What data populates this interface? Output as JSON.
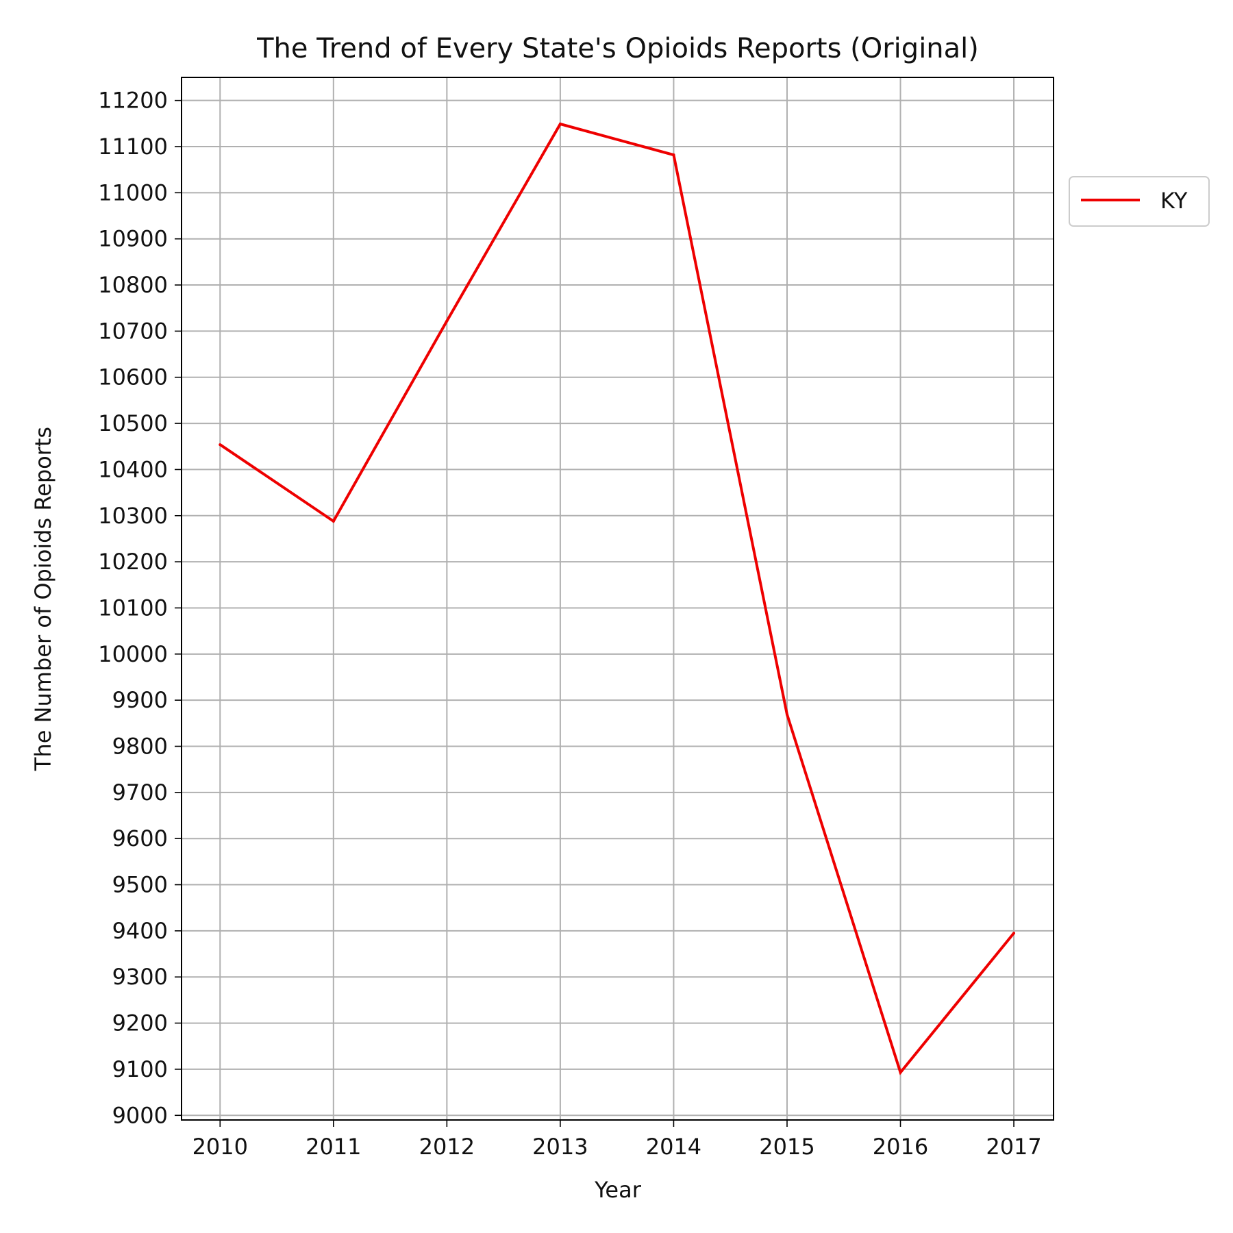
{
  "chart_data": {
    "type": "line",
    "title": "The Trend of Every State's Opioids Reports (Original)",
    "xlabel": "Year",
    "ylabel": "The Number of Opioids Reports",
    "x": [
      2010,
      2011,
      2012,
      2013,
      2014,
      2015,
      2016,
      2017
    ],
    "xlim": [
      2009.66,
      2017.35
    ],
    "ylim": [
      8990,
      11250
    ],
    "yticks": [
      9000,
      9100,
      9200,
      9300,
      9400,
      9500,
      9600,
      9700,
      9800,
      9900,
      10000,
      10100,
      10200,
      10300,
      10400,
      10500,
      10600,
      10700,
      10800,
      10900,
      11000,
      11100,
      11200
    ],
    "grid": true,
    "legend_position": "outside-right-top",
    "series": [
      {
        "name": "KY",
        "color": "#ee0000",
        "values": [
          10454,
          10288,
          10722,
          11149,
          11082,
          9869,
          9093,
          9395
        ]
      }
    ]
  }
}
